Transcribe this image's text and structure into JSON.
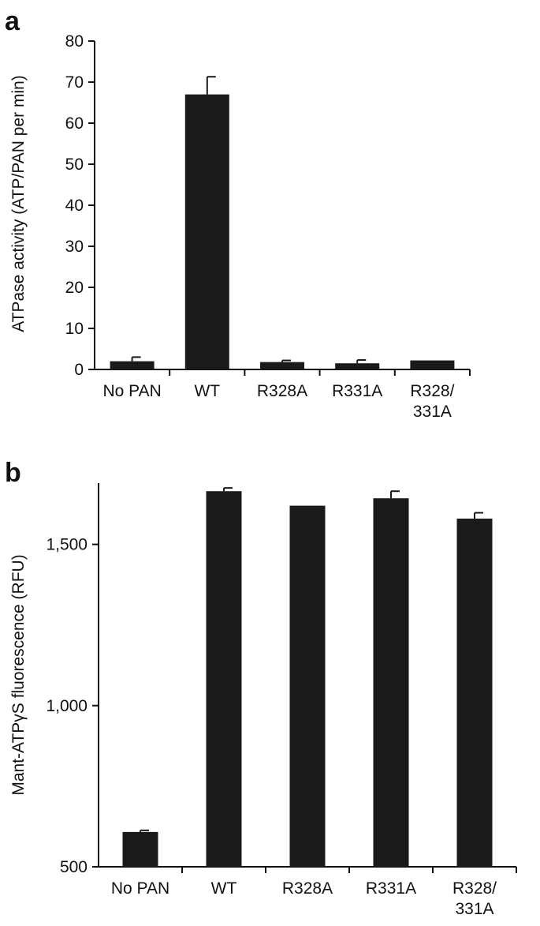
{
  "colors": {
    "bar": "#1a1a1a",
    "axis": "#111111",
    "background": "#ffffff"
  },
  "chart_data": [
    {
      "panel": "a",
      "type": "bar",
      "title": "",
      "xlabel": "",
      "ylabel": "ATPase activity (ATP/PAN per min)",
      "ylim": [
        0,
        80
      ],
      "yticks": [
        0,
        10,
        20,
        30,
        40,
        50,
        60,
        70,
        80
      ],
      "ytick_labels": [
        "0",
        "10",
        "20",
        "30",
        "40",
        "50",
        "60",
        "70",
        "80"
      ],
      "categories": [
        [
          "No PAN"
        ],
        [
          "WT"
        ],
        [
          "R328A"
        ],
        [
          "R331A"
        ],
        [
          "R328/",
          "331A"
        ]
      ],
      "values": [
        2.0,
        67.0,
        1.8,
        1.5,
        2.2
      ],
      "errors": [
        1.0,
        4.3,
        0.4,
        0.8,
        0
      ],
      "grid": false,
      "legend": false
    },
    {
      "panel": "b",
      "type": "bar",
      "title": "",
      "xlabel": "",
      "ylabel_parts": [
        "Mant-ATP",
        "γ",
        "S fluorescence (RFU)"
      ],
      "ylim": [
        500,
        1690
      ],
      "yticks": [
        500,
        1000,
        1500
      ],
      "ytick_labels": [
        "500",
        "1,000",
        "1,500"
      ],
      "categories": [
        [
          "No PAN"
        ],
        [
          "WT"
        ],
        [
          "R328A"
        ],
        [
          "R331A"
        ],
        [
          "R328/",
          "331A"
        ]
      ],
      "values": [
        608,
        1665,
        1620,
        1643,
        1580
      ],
      "errors": [
        5,
        10,
        0,
        22,
        18
      ],
      "grid": false,
      "legend": false
    }
  ]
}
